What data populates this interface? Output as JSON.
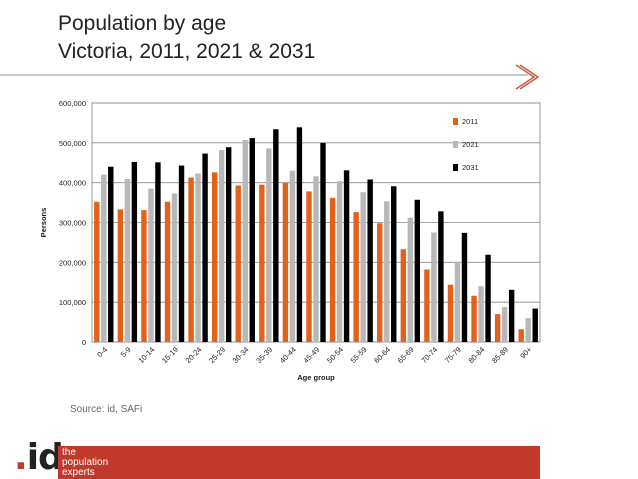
{
  "header": {
    "title_line1": "Population by age",
    "title_line2": "Victoria, 2011, 2021 & 2031"
  },
  "source": "Source: id, SAFi",
  "logo": {
    "mark": "id",
    "tagline": [
      "the",
      "population",
      "experts"
    ]
  },
  "colors": {
    "2011": "#e2621b",
    "2021": "#b8b8b8",
    "2031": "#000000",
    "brand_red": "#c0392b"
  },
  "chart_data": {
    "type": "bar",
    "ylabel": "Persons",
    "xlabel": "Age group",
    "ylim": [
      0,
      600000
    ],
    "yticks": [
      "0",
      "100,000",
      "200,000",
      "300,000",
      "400,000",
      "500,000",
      "600,000"
    ],
    "grid": true,
    "legend_position": "top-right",
    "categories": [
      "0-4",
      "5-9",
      "10-14",
      "15-19",
      "20-24",
      "25-29",
      "30-34",
      "35-39",
      "40-44",
      "45-49",
      "50-54",
      "55-59",
      "60-64",
      "65-69",
      "70-74",
      "75-79",
      "80-84",
      "85-89",
      "90+"
    ],
    "series": [
      {
        "name": "2011",
        "values": [
          352000,
          333000,
          331000,
          352000,
          413000,
          426000,
          393000,
          395000,
          400000,
          378000,
          362000,
          326000,
          298000,
          233000,
          182000,
          144000,
          116000,
          70000,
          32000
        ]
      },
      {
        "name": "2021",
        "values": [
          420000,
          409000,
          385000,
          373000,
          423000,
          482000,
          507000,
          486000,
          430000,
          416000,
          404000,
          376000,
          353000,
          312000,
          275000,
          202000,
          140000,
          88000,
          60000
        ]
      },
      {
        "name": "2031",
        "values": [
          440000,
          452000,
          451000,
          443000,
          473000,
          489000,
          512000,
          534000,
          539000,
          500000,
          431000,
          408000,
          391000,
          357000,
          328000,
          274000,
          219000,
          131000,
          84000
        ]
      }
    ]
  }
}
